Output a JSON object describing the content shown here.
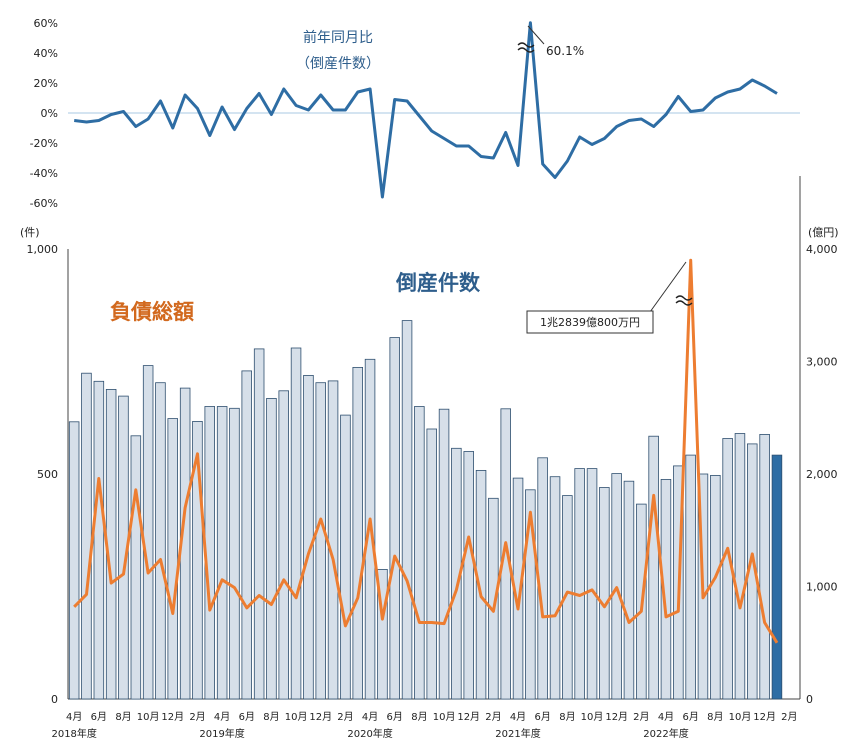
{
  "chart_data": [
    {
      "type": "line",
      "title": "前年同月比",
      "subtitle": "（倒産件数）",
      "ylim": [
        -60,
        60
      ],
      "y_ticks": [
        "60%",
        "40%",
        "20%",
        "0%",
        "-20%",
        "-40%",
        "-60%"
      ],
      "annotation": "60.1%",
      "color": "#2e6da4",
      "values": [
        -5,
        -6,
        -5,
        -1,
        1,
        -9,
        -4,
        8,
        -10,
        12,
        3,
        -15,
        4,
        -11,
        3,
        13,
        -1,
        16,
        5,
        2,
        12,
        2,
        2,
        14,
        16,
        -56,
        9,
        8,
        -2,
        -12,
        -17,
        -22,
        -22,
        -29,
        -30,
        -13,
        -35,
        60.1,
        -34,
        -43,
        -32,
        -16,
        -21,
        -17,
        -9,
        -5,
        -4,
        -9,
        -1,
        11,
        1,
        2,
        10,
        14,
        16,
        22,
        18,
        13
      ]
    },
    {
      "type": "bar",
      "title": "倒産件数",
      "left_unit": "(件)",
      "right_unit": "(億円)",
      "left_ylim": [
        0,
        1000
      ],
      "right_ylim": [
        0,
        4000
      ],
      "left_ticks": [
        "1,000",
        "500",
        "0"
      ],
      "right_ticks": [
        "4,000",
        "3,000",
        "2,000",
        "1,000",
        "0"
      ],
      "bar_color": "#d6dfe9",
      "bar_highlight_color": "#2e6da4",
      "bar_values": [
        616,
        724,
        706,
        688,
        673,
        585,
        741,
        703,
        623,
        691,
        617,
        650,
        650,
        646,
        729,
        778,
        668,
        685,
        780,
        719,
        703,
        707,
        631,
        737,
        755,
        288,
        803,
        841,
        650,
        600,
        644,
        557,
        550,
        508,
        446,
        645,
        491,
        465,
        536,
        494,
        452,
        512,
        512,
        470,
        501,
        484,
        433,
        584,
        488,
        518,
        542,
        500,
        497,
        579,
        590,
        567,
        588,
        542
      ],
      "series_name": "負債総額",
      "series_color": "#ed7d31",
      "line_values": [
        820,
        930,
        1960,
        1030,
        1110,
        1860,
        1120,
        1240,
        760,
        1700,
        2180,
        790,
        1060,
        990,
        810,
        920,
        840,
        1060,
        900,
        1290,
        1600,
        1240,
        650,
        900,
        1600,
        710,
        1270,
        1050,
        680,
        680,
        670,
        970,
        1440,
        910,
        780,
        1390,
        800,
        1660,
        730,
        740,
        950,
        920,
        970,
        820,
        990,
        680,
        780,
        1810,
        730,
        780,
        3900,
        900,
        1080,
        1340,
        810,
        1290,
        680,
        500
      ],
      "annotation": "1兆2839億800万円",
      "x_ticks": [
        "4月",
        "6月",
        "8月",
        "10月",
        "12月",
        "2月",
        "4月",
        "6月",
        "8月",
        "10月",
        "12月",
        "2月",
        "4月",
        "6月",
        "8月",
        "10月",
        "12月",
        "2月",
        "4月",
        "6月",
        "8月",
        "10月",
        "12月",
        "2月",
        "4月",
        "6月",
        "8月",
        "10月",
        "12月",
        "2月"
      ],
      "fiscal_years": [
        "2018年度",
        "2019年度",
        "2020年度",
        "2021年度",
        "2022年度"
      ]
    }
  ]
}
